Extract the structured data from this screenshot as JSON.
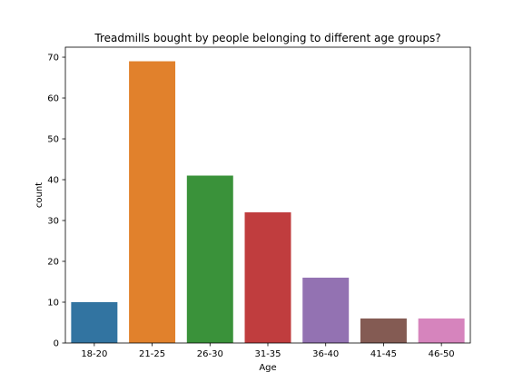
{
  "chart_data": {
    "type": "bar",
    "title": "Treadmills bought by people belonging to different age groups?",
    "xlabel": "Age",
    "ylabel": "count",
    "categories": [
      "18-20",
      "21-25",
      "26-30",
      "31-35",
      "36-40",
      "41-45",
      "46-50"
    ],
    "values": [
      10,
      69,
      41,
      32,
      16,
      6,
      6
    ],
    "colors": [
      "#3274a1",
      "#e1812c",
      "#3a923a",
      "#c03d3e",
      "#9372b2",
      "#845b53",
      "#d684bd"
    ],
    "yticks": [
      0,
      10,
      20,
      30,
      40,
      50,
      60,
      70
    ],
    "ylim": [
      0,
      72.45
    ],
    "grid": false,
    "legend": "none"
  }
}
